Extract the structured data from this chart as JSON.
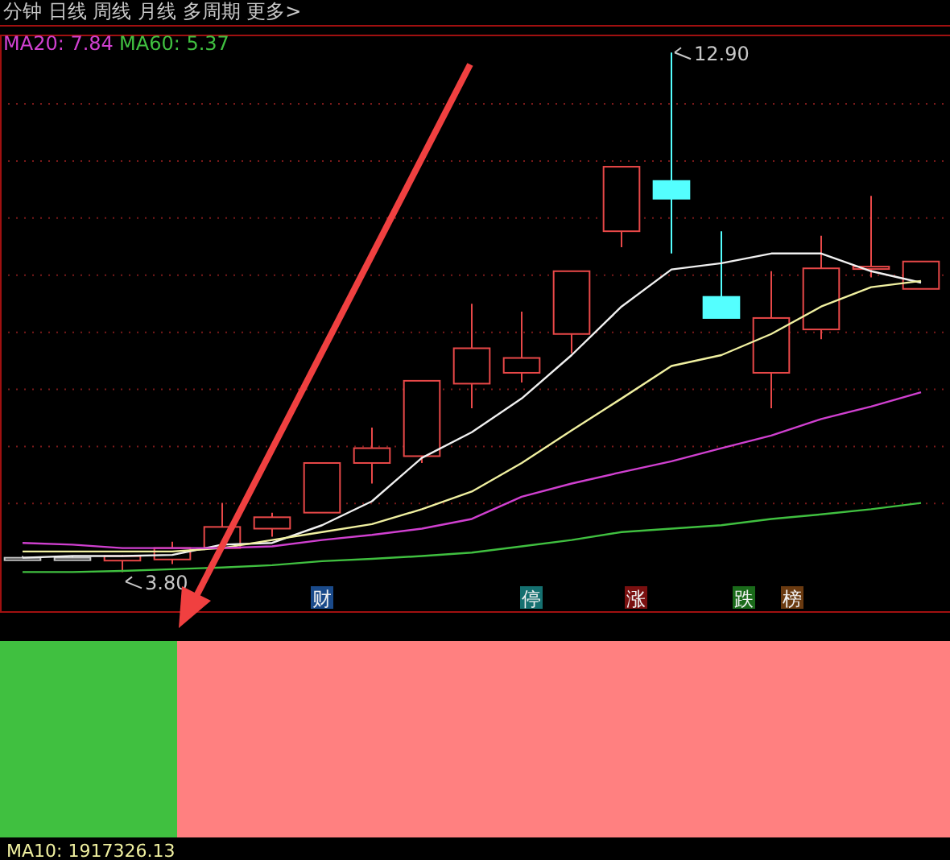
{
  "chart_data": [
    {
      "type": "candlestick",
      "title": "分钟  日线  周线  月线  多周期  更多>",
      "categories": [
        null,
        null,
        null,
        null,
        null,
        null,
        null,
        null,
        null,
        null,
        null,
        null,
        null,
        null,
        null,
        null,
        null,
        null,
        null
      ],
      "ohlc": [
        [
          4.05,
          4.08,
          4.02,
          4.05
        ],
        [
          4.05,
          4.08,
          4.02,
          4.05
        ],
        [
          4.0,
          4.1,
          3.8,
          4.08
        ],
        [
          4.02,
          4.33,
          3.94,
          4.22
        ],
        [
          4.22,
          5.01,
          4.22,
          4.59
        ],
        [
          4.56,
          4.84,
          4.42,
          4.76
        ],
        [
          4.84,
          5.71,
          4.84,
          5.71
        ],
        [
          5.71,
          6.33,
          5.35,
          5.97
        ],
        [
          5.83,
          7.15,
          5.71,
          7.15
        ],
        [
          7.1,
          8.5,
          6.67,
          7.72
        ],
        [
          7.29,
          8.36,
          7.12,
          7.55
        ],
        [
          7.97,
          9.07,
          7.63,
          9.07
        ],
        [
          9.77,
          10.9,
          9.49,
          10.9
        ],
        [
          10.65,
          12.9,
          9.38,
          10.34
        ],
        [
          8.62,
          9.77,
          8.25,
          8.25
        ],
        [
          7.29,
          9.07,
          6.67,
          8.25
        ],
        [
          8.05,
          9.69,
          7.88,
          9.12
        ],
        [
          9.15,
          10.39,
          8.96,
          9.15
        ],
        [
          8.76,
          9.24,
          8.76,
          9.24
        ]
      ],
      "colors": [
        "#c8c8c8",
        "#c8c8c8",
        "#e84848",
        "#e84848",
        "#e84848",
        "#e84848",
        "#e84848",
        "#e84848",
        "#e84848",
        "#e84848",
        "#e84848",
        "#e84848",
        "#e84848",
        "#54ffff",
        "#54ffff",
        "#e84848",
        "#e84848",
        "#e84848",
        "#e84848"
      ],
      "series": [
        {
          "type": "line",
          "color": "#f0f0f0",
          "values": [
            4.05,
            4.08,
            4.08,
            4.1,
            4.28,
            4.31,
            4.62,
            5.04,
            5.8,
            6.25,
            6.84,
            7.6,
            8.45,
            9.1,
            9.21,
            9.38,
            9.38,
            9.07,
            8.87
          ]
        },
        {
          "type": "line",
          "color": "#f0f0a0",
          "values": [
            4.16,
            4.16,
            4.16,
            4.16,
            4.22,
            4.36,
            4.5,
            4.64,
            4.9,
            5.21,
            5.71,
            6.28,
            6.84,
            7.41,
            7.6,
            7.97,
            8.45,
            8.79,
            8.9
          ]
        },
        {
          "type": "line",
          "name": "MA20: 7.84",
          "color": "#d040d0",
          "values": [
            4.31,
            4.28,
            4.22,
            4.22,
            4.22,
            4.25,
            4.36,
            4.45,
            4.56,
            4.73,
            5.12,
            5.35,
            5.55,
            5.74,
            5.97,
            6.19,
            6.48,
            6.7,
            6.95
          ]
        },
        {
          "type": "line",
          "name": "MA60: 5.37",
          "color": "#40c040",
          "values": [
            3.8,
            3.8,
            3.82,
            3.85,
            3.88,
            3.92,
            3.99,
            4.03,
            4.08,
            4.14,
            4.25,
            4.36,
            4.5,
            4.56,
            4.62,
            4.73,
            4.81,
            4.9,
            5.01
          ]
        }
      ],
      "ylim": [
        3.1,
        13.2
      ],
      "yticks": [
        {
          "value": 5,
          "label": null
        },
        {
          "value": 6,
          "label": null
        },
        {
          "value": 7,
          "label": null
        },
        {
          "value": 8,
          "label": null
        },
        {
          "value": 9,
          "label": null
        },
        {
          "value": 10,
          "label": null
        },
        {
          "value": 11,
          "label": null
        },
        {
          "value": 12,
          "label": null
        }
      ],
      "grid": "y",
      "legend": "top left",
      "annotations": [
        "12.90",
        "3.80",
        "财",
        "停",
        "涨",
        "跌",
        "榜"
      ]
    },
    {
      "type": "other",
      "annotations": [
        "MA10: 1917326.13"
      ]
    }
  ]
}
